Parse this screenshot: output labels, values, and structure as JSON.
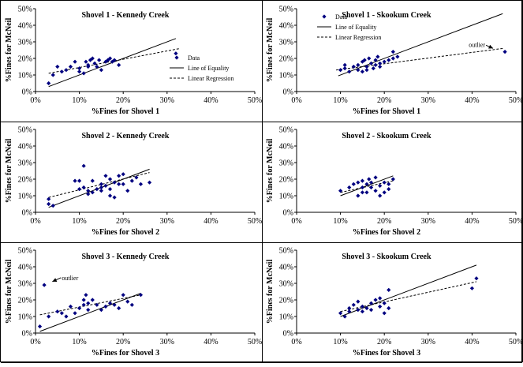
{
  "chart_data": [
    {
      "type": "scatter",
      "title": "Shovel 1 - Kennedy Creek",
      "xlabel": "%Fines for Shovel 1",
      "ylabel": "%Fines for McNeil",
      "xticks": [
        "0%",
        "10%",
        "20%",
        "30%",
        "40%",
        "50%"
      ],
      "yticks": [
        "0%",
        "10%",
        "20%",
        "30%",
        "40%",
        "50%"
      ],
      "xlim": [
        0,
        0.5
      ],
      "ylim": [
        0,
        0.5
      ],
      "legend": {
        "position": "right",
        "entries": [
          "Data",
          "Line of Equality",
          "Linear Regression"
        ]
      },
      "points": [
        [
          0.03,
          0.05
        ],
        [
          0.04,
          0.1
        ],
        [
          0.05,
          0.15
        ],
        [
          0.06,
          0.12
        ],
        [
          0.07,
          0.13
        ],
        [
          0.08,
          0.15
        ],
        [
          0.09,
          0.18
        ],
        [
          0.1,
          0.14
        ],
        [
          0.1,
          0.12
        ],
        [
          0.11,
          0.11
        ],
        [
          0.115,
          0.18
        ],
        [
          0.12,
          0.15
        ],
        [
          0.12,
          0.16
        ],
        [
          0.125,
          0.19
        ],
        [
          0.13,
          0.2
        ],
        [
          0.135,
          0.17
        ],
        [
          0.14,
          0.15
        ],
        [
          0.145,
          0.19
        ],
        [
          0.15,
          0.13
        ],
        [
          0.16,
          0.18
        ],
        [
          0.165,
          0.19
        ],
        [
          0.17,
          0.2
        ],
        [
          0.175,
          0.18
        ],
        [
          0.18,
          0.19
        ],
        [
          0.19,
          0.16
        ],
        [
          0.32,
          0.23
        ]
      ],
      "equality": [
        [
          0.03,
          0.03
        ],
        [
          0.32,
          0.32
        ]
      ],
      "regression": [
        [
          0.03,
          0.11
        ],
        [
          0.33,
          0.26
        ]
      ]
    },
    {
      "type": "scatter",
      "title": "Shovel 1 - Skookum Creek",
      "xlabel": "%Fines for Shovel 1",
      "ylabel": "%Fines for McNeil",
      "xticks": [
        "0%",
        "10%",
        "20%",
        "30%",
        "40%",
        "50%"
      ],
      "yticks": [
        "0%",
        "10%",
        "20%",
        "30%",
        "40%",
        "50%"
      ],
      "xlim": [
        0,
        0.5
      ],
      "ylim": [
        0,
        0.5
      ],
      "legend": {
        "position": "top-left",
        "entries": [
          "Data",
          "Line of Equality",
          "Linear Regression"
        ]
      },
      "annotation": {
        "text": "outlier",
        "x": 0.43,
        "y": 0.27
      },
      "points": [
        [
          0.1,
          0.13
        ],
        [
          0.11,
          0.14
        ],
        [
          0.11,
          0.16
        ],
        [
          0.12,
          0.12
        ],
        [
          0.13,
          0.15
        ],
        [
          0.14,
          0.16
        ],
        [
          0.14,
          0.13
        ],
        [
          0.15,
          0.12
        ],
        [
          0.15,
          0.18
        ],
        [
          0.155,
          0.19
        ],
        [
          0.16,
          0.15
        ],
        [
          0.16,
          0.13
        ],
        [
          0.165,
          0.2
        ],
        [
          0.17,
          0.17
        ],
        [
          0.175,
          0.14
        ],
        [
          0.18,
          0.19
        ],
        [
          0.18,
          0.16
        ],
        [
          0.185,
          0.21
        ],
        [
          0.19,
          0.17
        ],
        [
          0.19,
          0.15
        ],
        [
          0.2,
          0.18
        ],
        [
          0.21,
          0.19
        ],
        [
          0.22,
          0.2
        ],
        [
          0.22,
          0.24
        ],
        [
          0.23,
          0.21
        ],
        [
          0.475,
          0.24
        ]
      ],
      "equality": [
        [
          0.095,
          0.095
        ],
        [
          0.47,
          0.47
        ]
      ],
      "regression": [
        [
          0.09,
          0.13
        ],
        [
          0.47,
          0.26
        ]
      ]
    },
    {
      "type": "scatter",
      "title": "Shovel 2 - Kennedy Creek",
      "xlabel": "%Fines for Shovel 2",
      "ylabel": "%Fines for McNeil",
      "xticks": [
        "0%",
        "10%",
        "20%",
        "30%",
        "40%",
        "50%"
      ],
      "yticks": [
        "0%",
        "10%",
        "20%",
        "30%",
        "40%",
        "50%"
      ],
      "xlim": [
        0,
        0.5
      ],
      "ylim": [
        0,
        0.5
      ],
      "points": [
        [
          0.03,
          0.08
        ],
        [
          0.03,
          0.05
        ],
        [
          0.04,
          0.04
        ],
        [
          0.09,
          0.19
        ],
        [
          0.1,
          0.19
        ],
        [
          0.1,
          0.14
        ],
        [
          0.11,
          0.28
        ],
        [
          0.11,
          0.15
        ],
        [
          0.12,
          0.13
        ],
        [
          0.12,
          0.11
        ],
        [
          0.13,
          0.19
        ],
        [
          0.13,
          0.12
        ],
        [
          0.14,
          0.14
        ],
        [
          0.15,
          0.13
        ],
        [
          0.15,
          0.17
        ],
        [
          0.15,
          0.15
        ],
        [
          0.16,
          0.16
        ],
        [
          0.16,
          0.22
        ],
        [
          0.17,
          0.2
        ],
        [
          0.17,
          0.1
        ],
        [
          0.17,
          0.14
        ],
        [
          0.18,
          0.18
        ],
        [
          0.18,
          0.09
        ],
        [
          0.19,
          0.17
        ],
        [
          0.19,
          0.22
        ],
        [
          0.2,
          0.17
        ],
        [
          0.2,
          0.23
        ],
        [
          0.21,
          0.13
        ],
        [
          0.22,
          0.19
        ],
        [
          0.23,
          0.21
        ],
        [
          0.24,
          0.17
        ],
        [
          0.26,
          0.18
        ]
      ],
      "equality": [
        [
          0.03,
          0.03
        ],
        [
          0.26,
          0.26
        ]
      ],
      "regression": [
        [
          0.03,
          0.09
        ],
        [
          0.26,
          0.24
        ]
      ]
    },
    {
      "type": "scatter",
      "title": "Shovel 2 - Skookum Creek",
      "xlabel": "%Fines for Shovel 2",
      "ylabel": "%Fines for McNeil",
      "xticks": [
        "0%",
        "10%",
        "20%",
        "30%",
        "40%",
        "50%"
      ],
      "yticks": [
        "0%",
        "10%",
        "20%",
        "30%",
        "40%",
        "50%"
      ],
      "xlim": [
        0,
        0.5
      ],
      "ylim": [
        0,
        0.5
      ],
      "points": [
        [
          0.1,
          0.13
        ],
        [
          0.12,
          0.15
        ],
        [
          0.13,
          0.17
        ],
        [
          0.14,
          0.1
        ],
        [
          0.14,
          0.18
        ],
        [
          0.15,
          0.12
        ],
        [
          0.15,
          0.15
        ],
        [
          0.15,
          0.19
        ],
        [
          0.16,
          0.12
        ],
        [
          0.16,
          0.17
        ],
        [
          0.165,
          0.2
        ],
        [
          0.17,
          0.15
        ],
        [
          0.17,
          0.18
        ],
        [
          0.18,
          0.21
        ],
        [
          0.18,
          0.13
        ],
        [
          0.19,
          0.1
        ],
        [
          0.19,
          0.16
        ],
        [
          0.2,
          0.12
        ],
        [
          0.2,
          0.18
        ],
        [
          0.21,
          0.14
        ],
        [
          0.21,
          0.17
        ],
        [
          0.22,
          0.2
        ]
      ],
      "equality": [
        [
          0.1,
          0.1
        ],
        [
          0.22,
          0.22
        ]
      ],
      "regression": [
        [
          0.1,
          0.12
        ],
        [
          0.22,
          0.19
        ]
      ]
    },
    {
      "type": "scatter",
      "title": "Shovel 3 - Kennedy Creek",
      "xlabel": "%Fines for Shovel 3",
      "ylabel": "%Fines for McNeil",
      "xticks": [
        "0%",
        "10%",
        "20%",
        "30%",
        "40%",
        "50%"
      ],
      "yticks": [
        "0%",
        "10%",
        "20%",
        "30%",
        "40%",
        "50%"
      ],
      "xlim": [
        0,
        0.5
      ],
      "ylim": [
        0,
        0.5
      ],
      "annotation": {
        "text": "outlier",
        "x": 0.06,
        "y": 0.32
      },
      "points": [
        [
          0.01,
          0.04
        ],
        [
          0.02,
          0.29
        ],
        [
          0.03,
          0.1
        ],
        [
          0.05,
          0.13
        ],
        [
          0.06,
          0.12
        ],
        [
          0.07,
          0.1
        ],
        [
          0.08,
          0.16
        ],
        [
          0.09,
          0.12
        ],
        [
          0.1,
          0.15
        ],
        [
          0.11,
          0.2
        ],
        [
          0.11,
          0.17
        ],
        [
          0.115,
          0.23
        ],
        [
          0.12,
          0.18
        ],
        [
          0.12,
          0.14
        ],
        [
          0.13,
          0.2
        ],
        [
          0.14,
          0.17
        ],
        [
          0.15,
          0.14
        ],
        [
          0.16,
          0.16
        ],
        [
          0.17,
          0.18
        ],
        [
          0.18,
          0.17
        ],
        [
          0.19,
          0.15
        ],
        [
          0.2,
          0.23
        ],
        [
          0.21,
          0.19
        ],
        [
          0.22,
          0.17
        ],
        [
          0.24,
          0.23
        ]
      ],
      "equality": [
        [
          0.01,
          0.01
        ],
        [
          0.24,
          0.24
        ]
      ],
      "regression": [
        [
          0.01,
          0.11
        ],
        [
          0.24,
          0.23
        ]
      ]
    },
    {
      "type": "scatter",
      "title": "Shovel 3 - Skookum Creek",
      "xlabel": "%Fines for Shovel 3",
      "ylabel": "%Fines for McNeil",
      "xticks": [
        "0%",
        "10%",
        "20%",
        "30%",
        "40%",
        "50%"
      ],
      "yticks": [
        "0%",
        "10%",
        "20%",
        "30%",
        "40%",
        "50%"
      ],
      "xlim": [
        0,
        0.5
      ],
      "ylim": [
        0,
        0.5
      ],
      "points": [
        [
          0.1,
          0.12
        ],
        [
          0.11,
          0.1
        ],
        [
          0.12,
          0.15
        ],
        [
          0.12,
          0.13
        ],
        [
          0.13,
          0.17
        ],
        [
          0.14,
          0.14
        ],
        [
          0.14,
          0.19
        ],
        [
          0.15,
          0.13
        ],
        [
          0.15,
          0.16
        ],
        [
          0.16,
          0.15
        ],
        [
          0.17,
          0.18
        ],
        [
          0.17,
          0.14
        ],
        [
          0.18,
          0.2
        ],
        [
          0.19,
          0.16
        ],
        [
          0.19,
          0.21
        ],
        [
          0.2,
          0.12
        ],
        [
          0.2,
          0.18
        ],
        [
          0.21,
          0.15
        ],
        [
          0.21,
          0.26
        ],
        [
          0.4,
          0.27
        ],
        [
          0.41,
          0.33
        ]
      ],
      "equality": [
        [
          0.1,
          0.1
        ],
        [
          0.41,
          0.41
        ]
      ],
      "regression": [
        [
          0.1,
          0.13
        ],
        [
          0.41,
          0.31
        ]
      ]
    }
  ]
}
